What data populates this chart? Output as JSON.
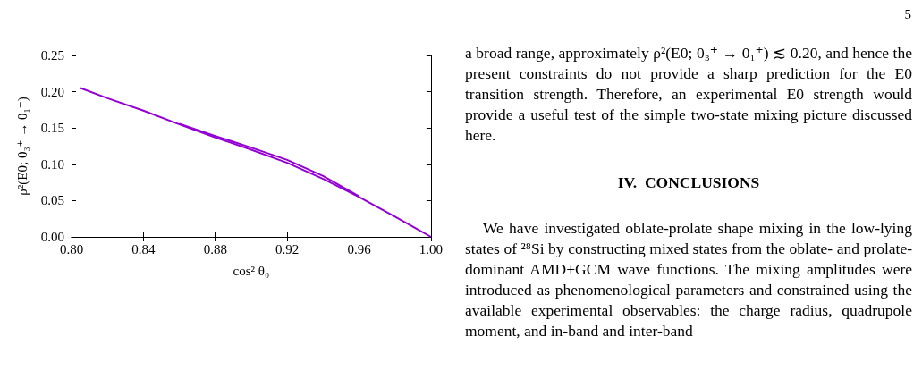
{
  "chart_data": {
    "type": "line",
    "xlabel": "cos² θ₀",
    "ylabel": "ρ²(E0; 0₃⁺ → 0₁⁺)",
    "series": [
      {
        "color": "#9400d3",
        "values": [
          0.205,
          0.191,
          0.174,
          0.155,
          0.137,
          0.12,
          0.102,
          0.08,
          0.055,
          0.028,
          0.0
        ],
        "x": [
          0.805,
          0.82,
          0.84,
          0.86,
          0.88,
          0.9,
          0.92,
          0.94,
          0.96,
          0.98,
          1.0
        ]
      },
      {
        "color": "#9400d3",
        "values": [
          0.156,
          0.139,
          0.123,
          0.106,
          0.084,
          0.056
        ],
        "x": [
          0.86,
          0.88,
          0.9,
          0.92,
          0.94,
          0.96
        ]
      }
    ],
    "xlim": [
      0.8,
      1.0
    ],
    "xticks": [
      {
        "value": 0.8,
        "label": "0.80"
      },
      {
        "value": 0.84,
        "label": "0.84"
      },
      {
        "value": 0.88,
        "label": "0.88"
      },
      {
        "value": 0.92,
        "label": "0.92"
      },
      {
        "value": 0.96,
        "label": "0.96"
      },
      {
        "value": 1.0,
        "label": "1.00"
      }
    ],
    "ylim": [
      0,
      0.25
    ],
    "yticks": [
      {
        "value": 0,
        "label": "0.00"
      },
      {
        "value": 0.05,
        "label": "0.05"
      },
      {
        "value": 0.1,
        "label": "0.10"
      },
      {
        "value": 0.15,
        "label": "0.15"
      },
      {
        "value": 0.2,
        "label": "0.20"
      },
      {
        "value": 0.25,
        "label": "0.25"
      }
    ],
    "grid": false,
    "marker": "none",
    "line_style": "solid",
    "annotations": [
      "5",
      "a broad range, approximately ρ²(E0; 0₃⁺ → 0₁⁺) ≲ 0.20, and hence the present constraints do not provide a sharp prediction for the E0 transition strength. Therefore, an experimental E0 strength would provide a useful test of the simple two-state mixing picture discussed here.",
      "IV.  CONCLUSIONS",
      "We have investigated oblate-prolate shape mixing in the low-lying states of ²⁸Si by constructing mixed states from the oblate- and prolate-dominant AMD+GCM wave functions. The mixing amplitudes were introduced as phenomenological parameters and constrained using the available experimental observables: the charge radius, quadrupole moment, and in-band and inter-band"
    ]
  }
}
